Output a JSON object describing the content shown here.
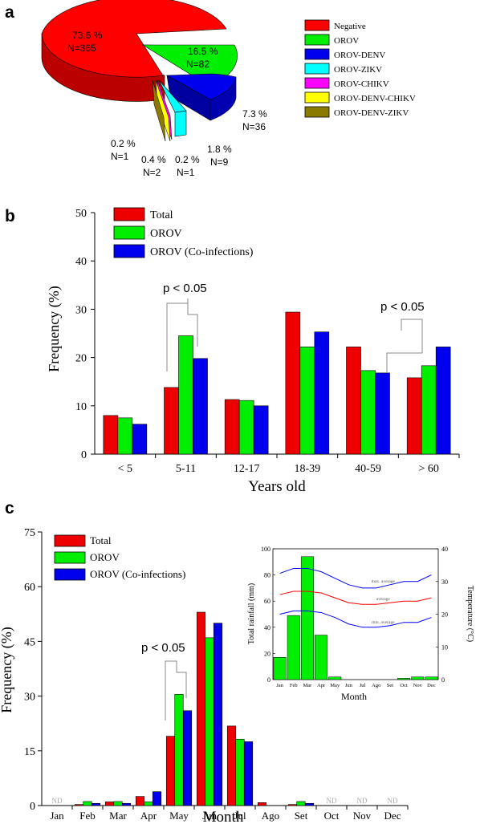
{
  "panel_labels": {
    "a": "a",
    "b": "b",
    "c": "c"
  },
  "chart_data": [
    {
      "type": "pie",
      "title": "",
      "labels": [
        "Negative",
        "OROV",
        "OROV-DENV",
        "OROV-ZIKV",
        "OROV-CHIKV",
        "OROV-DENV-CHIKV",
        "OROV-DENV-ZIKV"
      ],
      "percent": [
        73.6,
        16.5,
        7.3,
        1.8,
        0.2,
        0.2,
        0.4
      ],
      "counts": [
        365,
        82,
        36,
        9,
        1,
        1,
        2
      ],
      "colors": [
        "#ff0000",
        "#00ee00",
        "#0000ee",
        "#00ffff",
        "#ff00ff",
        "#ffff00",
        "#8b7a00"
      ],
      "slice_labels": [
        {
          "pct": "73.6 %",
          "n": "N=365"
        },
        {
          "pct": "16.5 %",
          "n": "N=82"
        },
        {
          "pct": "7.3 %",
          "n": "N=36"
        },
        {
          "pct": "1.8 %",
          "n": "N=9"
        },
        {
          "pct": "0.2 %",
          "n": "N=1"
        },
        {
          "pct": "0.2 %",
          "n": "N=1"
        },
        {
          "pct": "0.4 %",
          "n": "N=2"
        }
      ],
      "legend": "right"
    },
    {
      "type": "bar",
      "categories": [
        "< 5",
        "5-11",
        "12-17",
        "18-39",
        "40-59",
        "> 60"
      ],
      "series": [
        {
          "name": "Total",
          "color": "#ee0000",
          "values": [
            8,
            13.8,
            11.3,
            29.4,
            22.2,
            15.8
          ]
        },
        {
          "name": "OROV",
          "color": "#00ee00",
          "values": [
            7.5,
            24.5,
            11.1,
            22.2,
            17.3,
            18.3
          ]
        },
        {
          "name": "OROV (Co-infections)",
          "color": "#0000ee",
          "values": [
            6.2,
            19.8,
            10,
            25.3,
            16.8,
            22.2
          ]
        }
      ],
      "xlabel": "Years old",
      "ylabel": "Frequency (%)",
      "ylim": [
        0,
        50
      ],
      "yticks": [
        0,
        10,
        20,
        30,
        40,
        50
      ],
      "annotations": [
        {
          "text": "p < 0.05",
          "category": "5-11"
        },
        {
          "text": "p < 0.05",
          "category": "> 60"
        }
      ],
      "legend": "top-left"
    },
    {
      "type": "bar",
      "categories": [
        "Jan",
        "Feb",
        "Mar",
        "Apr",
        "May",
        "Jun",
        "Jul",
        "Ago",
        "Set",
        "Oct",
        "Nov",
        "Dec"
      ],
      "series": [
        {
          "name": "Total",
          "color": "#ee0000",
          "values": [
            0,
            0.3,
            1,
            2.5,
            19,
            53,
            21.8,
            0.8,
            0.3,
            0,
            0,
            0
          ]
        },
        {
          "name": "OROV",
          "color": "#00ee00",
          "values": [
            0,
            1.1,
            1.1,
            1,
            30.5,
            46,
            18.2,
            0,
            1.1,
            0,
            0,
            0
          ]
        },
        {
          "name": "OROV (Co-infections)",
          "color": "#0000ee",
          "values": [
            0,
            0.6,
            0.6,
            3.8,
            26,
            50,
            17.5,
            0,
            0.6,
            0,
            0,
            0
          ]
        }
      ],
      "nd_months": [
        "Jan",
        "Oct",
        "Nov",
        "Dec"
      ],
      "nd_label": "ND",
      "xlabel": "Month",
      "ylabel": "Frequency (%)",
      "ylim": [
        0,
        75
      ],
      "yticks": [
        0,
        15,
        30,
        45,
        60,
        75
      ],
      "annotations": [
        {
          "text": "p < 0.05",
          "category": "May"
        }
      ],
      "legend": "top-left"
    },
    {
      "type": "bar",
      "inset": true,
      "categories": [
        "Jan",
        "Feb",
        "Mar",
        "Apr",
        "May",
        "Jun",
        "Jul",
        "Ago",
        "Set",
        "Oct",
        "Nov",
        "Dec"
      ],
      "rainfall": [
        17,
        49,
        94,
        34,
        2,
        0,
        0,
        0,
        0,
        1,
        2,
        2
      ],
      "bar_color": "#00ee00",
      "lines": [
        {
          "label": "max. average",
          "color": "#0000ff",
          "values": [
            32.5,
            34,
            34,
            33,
            31,
            29,
            28,
            28,
            29,
            30,
            30,
            32
          ]
        },
        {
          "label": "average",
          "color": "#ff0000",
          "values": [
            26,
            27,
            27,
            26.5,
            25,
            23.5,
            23,
            23,
            23.5,
            24,
            24,
            25
          ]
        },
        {
          "label": "min. average",
          "color": "#0000ff",
          "values": [
            20,
            21,
            21,
            20.5,
            19,
            17,
            16,
            16,
            16.5,
            17.5,
            17.5,
            19
          ]
        }
      ],
      "xlabel": "Month",
      "ylabel_left": "Total rainfall (mm)",
      "ylabel_right": "Temperature (°C)",
      "ylim_left": [
        0,
        100
      ],
      "yticks_left": [
        0,
        20,
        40,
        60,
        80,
        100
      ],
      "ylim_right": [
        0,
        40
      ],
      "yticks_right": [
        0,
        10,
        20,
        30,
        40
      ]
    }
  ]
}
